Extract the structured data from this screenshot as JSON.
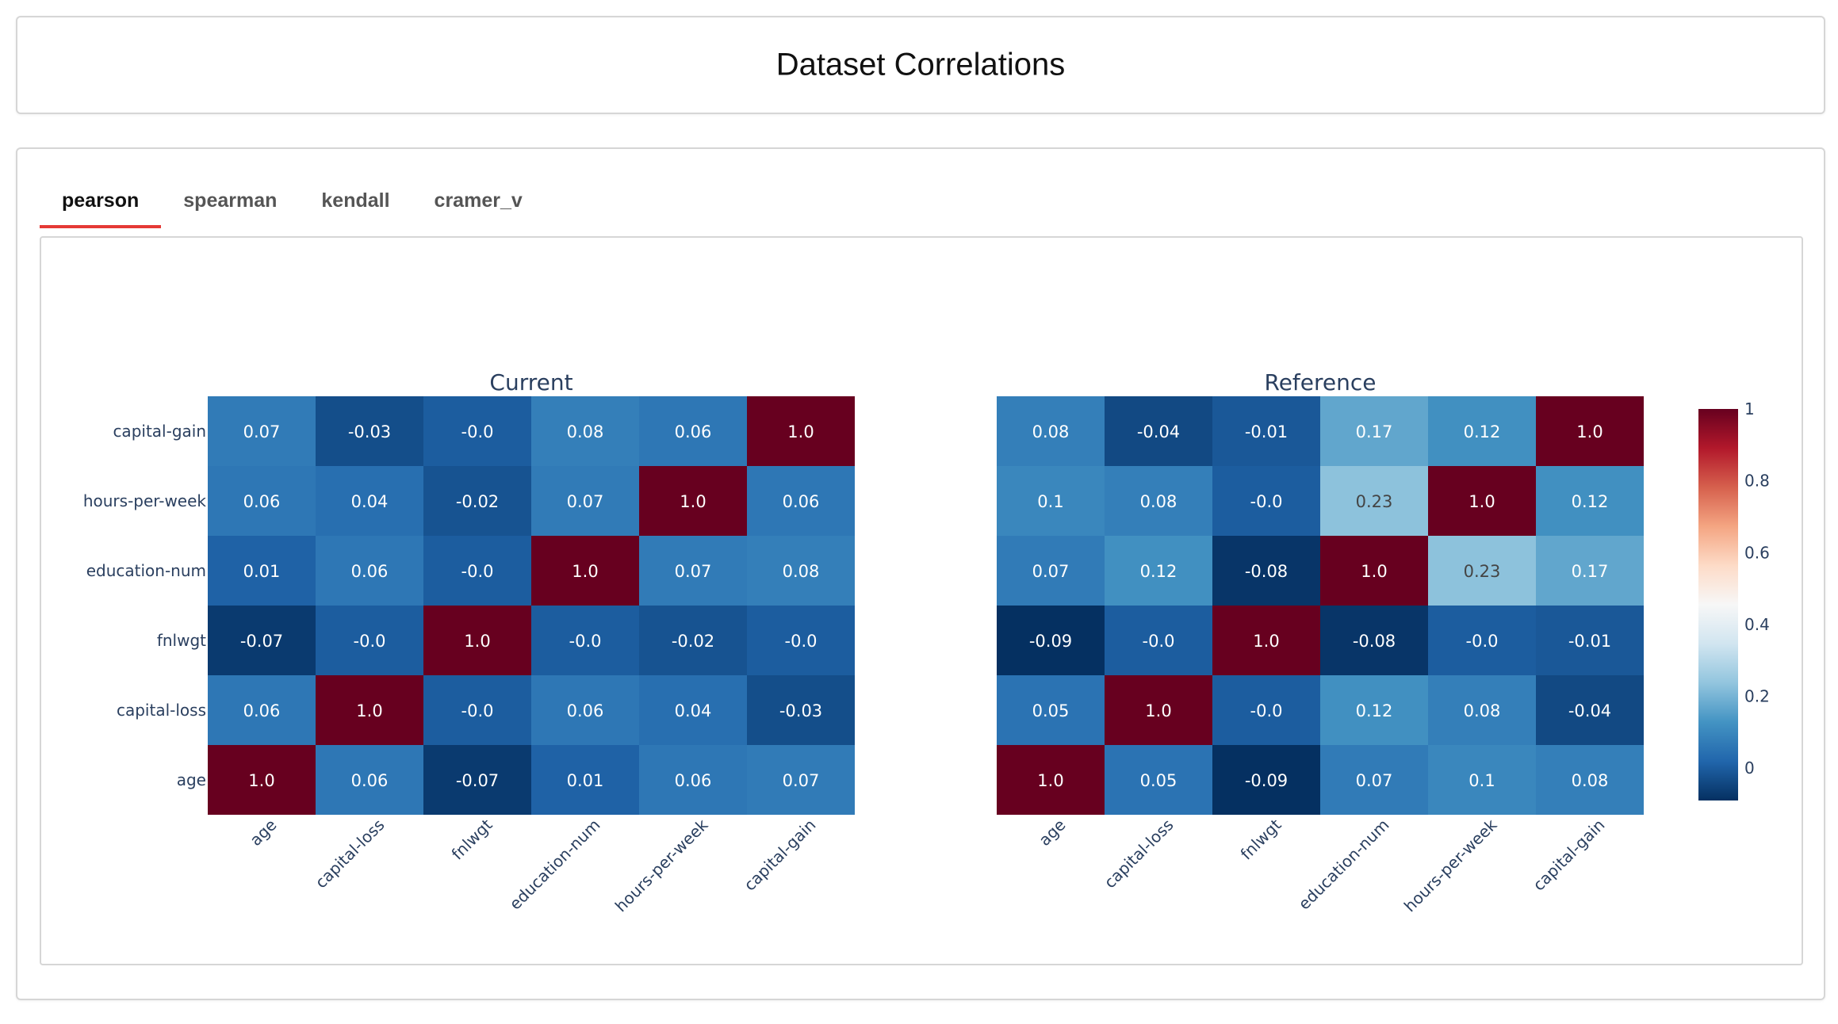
{
  "page": {
    "title": "Dataset Correlations"
  },
  "tabs": [
    {
      "label": "pearson",
      "active": true
    },
    {
      "label": "spearman",
      "active": false
    },
    {
      "label": "kendall",
      "active": false
    },
    {
      "label": "cramer_v",
      "active": false
    }
  ],
  "chart_data": {
    "type": "heatmap",
    "variables": [
      "age",
      "capital-loss",
      "fnlwgt",
      "education-num",
      "hours-per-week",
      "capital-gain"
    ],
    "colorscale": "RdBu",
    "zrange": [
      -0.09,
      1.0
    ],
    "colorbar_ticks": [
      "0",
      "0.2",
      "0.4",
      "0.6",
      "0.8",
      "1"
    ],
    "panels": [
      {
        "title": "Current",
        "matrix": [
          [
            "1.0",
            "0.06",
            "-0.07",
            "0.01",
            "0.06",
            "0.07"
          ],
          [
            "0.06",
            "1.0",
            "-0.0",
            "0.06",
            "0.04",
            "-0.03"
          ],
          [
            "-0.07",
            "-0.0",
            "1.0",
            "-0.0",
            "-0.02",
            "-0.0"
          ],
          [
            "0.01",
            "0.06",
            "-0.0",
            "1.0",
            "0.07",
            "0.08"
          ],
          [
            "0.06",
            "0.04",
            "-0.02",
            "0.07",
            "1.0",
            "0.06"
          ],
          [
            "0.07",
            "-0.03",
            "-0.0",
            "0.08",
            "0.06",
            "1.0"
          ]
        ]
      },
      {
        "title": "Reference",
        "matrix": [
          [
            "1.0",
            "0.05",
            "-0.09",
            "0.07",
            "0.1",
            "0.08"
          ],
          [
            "0.05",
            "1.0",
            "-0.0",
            "0.12",
            "0.08",
            "-0.04"
          ],
          [
            "-0.09",
            "-0.0",
            "1.0",
            "-0.08",
            "-0.0",
            "-0.01"
          ],
          [
            "0.07",
            "0.12",
            "-0.08",
            "1.0",
            "0.23",
            "0.17"
          ],
          [
            "0.1",
            "0.08",
            "-0.0",
            "0.23",
            "1.0",
            "0.12"
          ],
          [
            "0.08",
            "-0.04",
            "-0.01",
            "0.17",
            "0.12",
            "1.0"
          ]
        ]
      }
    ]
  }
}
